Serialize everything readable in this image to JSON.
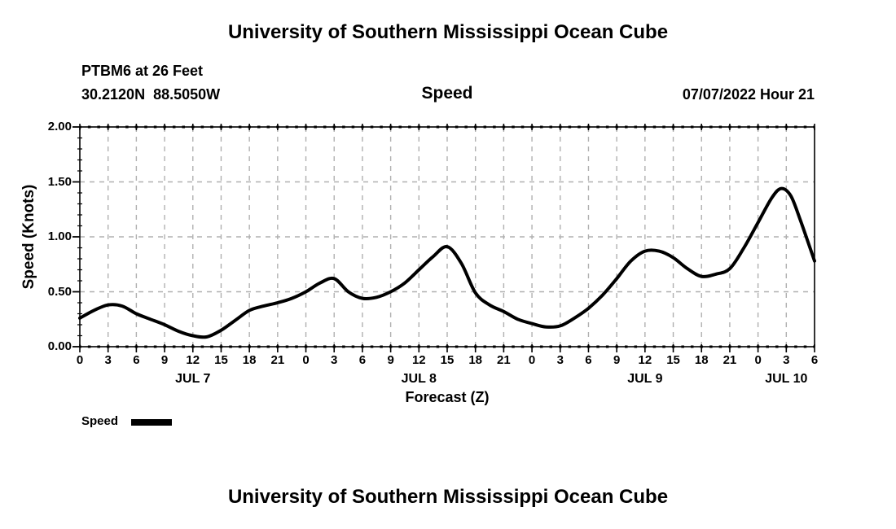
{
  "header": {
    "title": "University of Southern Mississippi Ocean Cube",
    "station": "PTBM6 at 26 Feet",
    "coordinates": "30.2120N  88.5050W",
    "panel_title": "Speed",
    "datetime": "07/07/2022 Hour 21"
  },
  "footer": {
    "title": "University of Southern Mississippi Ocean Cube"
  },
  "legend": {
    "label": "Speed",
    "swatch_color": "#000000",
    "position": "bottom-left"
  },
  "colors": {
    "background": "#ffffff",
    "line": "#000000",
    "grid": "#b0b0b0",
    "text": "#000000"
  },
  "chart_data": {
    "type": "line",
    "title": "Speed",
    "xlabel": "Forecast (Z)",
    "ylabel": "Speed (Knots)",
    "ylim": [
      0,
      2
    ],
    "xlim_hours": [
      0,
      78
    ],
    "grid": "dashed gray, vertical every 3 hours, horizontal every 0.5 knots",
    "legend_position": "below chart, bottom-left",
    "yticks": [
      {
        "value": 0.0,
        "label": "0.00"
      },
      {
        "value": 0.5,
        "label": "0.50"
      },
      {
        "value": 1.0,
        "label": "1.00"
      },
      {
        "value": 1.5,
        "label": "1.50"
      },
      {
        "value": 2.0,
        "label": "2.00"
      }
    ],
    "y_minor_tick_step": 0.1,
    "xticks": [
      {
        "hour": 0,
        "label": "0"
      },
      {
        "hour": 3,
        "label": "3"
      },
      {
        "hour": 6,
        "label": "6"
      },
      {
        "hour": 9,
        "label": "9"
      },
      {
        "hour": 12,
        "label": "12"
      },
      {
        "hour": 15,
        "label": "15"
      },
      {
        "hour": 18,
        "label": "18"
      },
      {
        "hour": 21,
        "label": "21"
      },
      {
        "hour": 24,
        "label": "0"
      },
      {
        "hour": 27,
        "label": "3"
      },
      {
        "hour": 30,
        "label": "6"
      },
      {
        "hour": 33,
        "label": "9"
      },
      {
        "hour": 36,
        "label": "12"
      },
      {
        "hour": 39,
        "label": "15"
      },
      {
        "hour": 42,
        "label": "18"
      },
      {
        "hour": 45,
        "label": "21"
      },
      {
        "hour": 48,
        "label": "0"
      },
      {
        "hour": 51,
        "label": "3"
      },
      {
        "hour": 54,
        "label": "6"
      },
      {
        "hour": 57,
        "label": "9"
      },
      {
        "hour": 60,
        "label": "12"
      },
      {
        "hour": 63,
        "label": "15"
      },
      {
        "hour": 66,
        "label": "18"
      },
      {
        "hour": 69,
        "label": "21"
      },
      {
        "hour": 72,
        "label": "0"
      },
      {
        "hour": 75,
        "label": "3"
      },
      {
        "hour": 78,
        "label": "6"
      }
    ],
    "day_labels": [
      {
        "hour": 12,
        "label": "JUL 7"
      },
      {
        "hour": 36,
        "label": "JUL 8"
      },
      {
        "hour": 60,
        "label": "JUL 9"
      },
      {
        "hour": 75,
        "label": "JUL 10"
      }
    ],
    "series": [
      {
        "name": "Speed",
        "units": "Knots",
        "color": "#000000",
        "points": [
          [
            0,
            0.26
          ],
          [
            1.5,
            0.33
          ],
          [
            3,
            0.38
          ],
          [
            4.5,
            0.37
          ],
          [
            6,
            0.3
          ],
          [
            7.5,
            0.25
          ],
          [
            9,
            0.2
          ],
          [
            10.5,
            0.14
          ],
          [
            12,
            0.1
          ],
          [
            13.5,
            0.09
          ],
          [
            15,
            0.15
          ],
          [
            16.5,
            0.24
          ],
          [
            18,
            0.33
          ],
          [
            19.5,
            0.37
          ],
          [
            21,
            0.4
          ],
          [
            22.5,
            0.44
          ],
          [
            24,
            0.5
          ],
          [
            25.5,
            0.58
          ],
          [
            27,
            0.62
          ],
          [
            28.5,
            0.5
          ],
          [
            30,
            0.44
          ],
          [
            31.5,
            0.45
          ],
          [
            33,
            0.5
          ],
          [
            34.5,
            0.58
          ],
          [
            36,
            0.7
          ],
          [
            37.5,
            0.82
          ],
          [
            39,
            0.91
          ],
          [
            40.5,
            0.76
          ],
          [
            42,
            0.49
          ],
          [
            43.5,
            0.38
          ],
          [
            45,
            0.32
          ],
          [
            46.5,
            0.25
          ],
          [
            48,
            0.21
          ],
          [
            49.5,
            0.18
          ],
          [
            51,
            0.19
          ],
          [
            52.5,
            0.26
          ],
          [
            54,
            0.35
          ],
          [
            55.5,
            0.47
          ],
          [
            57,
            0.62
          ],
          [
            58.5,
            0.78
          ],
          [
            60,
            0.87
          ],
          [
            61.5,
            0.87
          ],
          [
            63,
            0.81
          ],
          [
            64.5,
            0.71
          ],
          [
            66,
            0.64
          ],
          [
            67.5,
            0.66
          ],
          [
            69,
            0.71
          ],
          [
            70.5,
            0.9
          ],
          [
            72,
            1.13
          ],
          [
            73.5,
            1.36
          ],
          [
            74.5,
            1.44
          ],
          [
            75.5,
            1.37
          ],
          [
            76.5,
            1.15
          ],
          [
            78,
            0.78
          ]
        ]
      }
    ]
  }
}
